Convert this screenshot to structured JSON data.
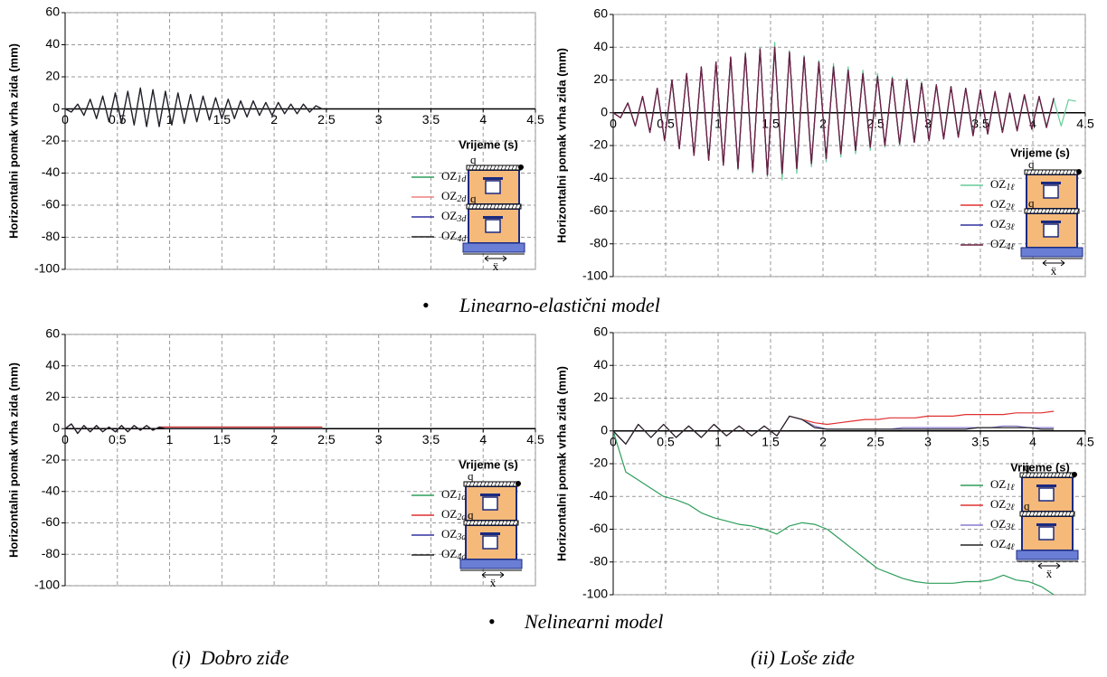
{
  "chart_data": [
    {
      "type": "line",
      "x_label": "Vrijeme (s)",
      "y_label": "Horizontalni pomak vrha zida (mm)",
      "xlim": [
        0,
        4.5
      ],
      "ylim": [
        -100,
        60
      ],
      "xticks": [
        0,
        0.5,
        1,
        1.5,
        2,
        2.5,
        3,
        3.5,
        4,
        4.5
      ],
      "yticks": [
        -100,
        -80,
        -60,
        -40,
        -20,
        0,
        20,
        40,
        60
      ],
      "grid": true,
      "icon_labels": [
        "q",
        "q",
        "ẍ"
      ],
      "x": [
        0,
        0.06,
        0.12,
        0.18,
        0.24,
        0.3,
        0.36,
        0.42,
        0.48,
        0.54,
        0.6,
        0.66,
        0.72,
        0.78,
        0.84,
        0.9,
        0.96,
        1.02,
        1.08,
        1.14,
        1.2,
        1.26,
        1.32,
        1.38,
        1.44,
        1.5,
        1.56,
        1.62,
        1.68,
        1.74,
        1.8,
        1.86,
        1.92,
        1.98,
        2.04,
        2.1,
        2.16,
        2.22,
        2.28,
        2.34,
        2.4,
        2.46
      ],
      "series": [
        {
          "name": "OZ1d",
          "color": "#2e9e5b",
          "values": [
            0,
            -2,
            3,
            -4,
            6,
            -6,
            8,
            -8,
            10,
            -9,
            11,
            -10,
            13,
            -11,
            12,
            -11,
            11,
            -10,
            10,
            -9,
            9,
            -8,
            8,
            -7,
            7,
            -6,
            6,
            -6,
            5,
            -5,
            5,
            -4,
            4,
            -4,
            4,
            -3,
            3,
            -3,
            3,
            -2,
            2,
            0
          ]
        },
        {
          "name": "OZ2d",
          "color": "#f08080",
          "values": [
            0,
            -2,
            3,
            -4,
            6,
            -6,
            8,
            -8,
            10,
            -9,
            11,
            -10,
            13,
            -11,
            12,
            -11,
            11,
            -10,
            10,
            -9,
            9,
            -8,
            8,
            -7,
            7,
            -6,
            6,
            -6,
            5,
            -5,
            5,
            -4,
            4,
            -4,
            4,
            -3,
            3,
            -3,
            3,
            -2,
            2,
            0
          ]
        },
        {
          "name": "OZ3d",
          "color": "#3030a0",
          "values": [
            0,
            -2,
            3,
            -4,
            6,
            -6,
            8,
            -8,
            10,
            -9,
            11,
            -10,
            13,
            -11,
            12,
            -11,
            11,
            -10,
            10,
            -9,
            9,
            -8,
            8,
            -7,
            7,
            -6,
            6,
            -6,
            5,
            -5,
            5,
            -4,
            4,
            -4,
            4,
            -3,
            3,
            -3,
            3,
            -2,
            2,
            0
          ]
        },
        {
          "name": "OZ4d",
          "color": "#222222",
          "values": [
            0,
            -2,
            3,
            -4,
            6,
            -6,
            8,
            -8,
            10,
            -9,
            11,
            -10,
            13,
            -11,
            12,
            -11,
            11,
            -10,
            10,
            -9,
            9,
            -8,
            8,
            -7,
            7,
            -6,
            6,
            -6,
            5,
            -5,
            5,
            -4,
            4,
            -4,
            4,
            -3,
            3,
            -3,
            3,
            -2,
            2,
            0
          ]
        }
      ]
    },
    {
      "type": "line",
      "x_label": "Vrijeme (s)",
      "y_label": "Horizontalni pomak vrha zida (mm)",
      "xlim": [
        0,
        4.5
      ],
      "ylim": [
        -100,
        60
      ],
      "xticks": [
        0,
        0.5,
        1,
        1.5,
        2,
        2.5,
        3,
        3.5,
        4,
        4.5
      ],
      "yticks": [
        -100,
        -80,
        -60,
        -40,
        -20,
        0,
        20,
        40,
        60
      ],
      "grid": true,
      "icon_labels": [
        "q",
        "q",
        "ẍ"
      ],
      "x": [
        0,
        0.07,
        0.14,
        0.21,
        0.28,
        0.35,
        0.42,
        0.49,
        0.56,
        0.63,
        0.7,
        0.77,
        0.84,
        0.91,
        0.98,
        1.05,
        1.12,
        1.19,
        1.26,
        1.33,
        1.4,
        1.47,
        1.54,
        1.61,
        1.68,
        1.75,
        1.82,
        1.89,
        1.96,
        2.03,
        2.1,
        2.17,
        2.24,
        2.31,
        2.38,
        2.45,
        2.52,
        2.59,
        2.66,
        2.73,
        2.8,
        2.87,
        2.94,
        3.01,
        3.08,
        3.15,
        3.22,
        3.29,
        3.36,
        3.43,
        3.5,
        3.57,
        3.64,
        3.71,
        3.78,
        3.85,
        3.92,
        3.99,
        4.06,
        4.13,
        4.2,
        4.27,
        4.34,
        4.41
      ],
      "series": [
        {
          "name": "OZ1ℓ",
          "color": "#66cc99",
          "values": [
            0,
            -3,
            6,
            -8,
            10,
            -12,
            14,
            -17,
            19,
            -22,
            24,
            -26,
            28,
            -29,
            30,
            -32,
            33,
            -35,
            37,
            -37,
            40,
            -39,
            43,
            -41,
            38,
            -37,
            35,
            -33,
            32,
            -30,
            30,
            -27,
            28,
            -25,
            26,
            -23,
            24,
            -21,
            22,
            -20,
            21,
            -18,
            19,
            -17,
            17,
            -15,
            16,
            -14,
            15,
            -12,
            13,
            -12,
            12,
            -11,
            11,
            -10,
            10,
            -9,
            9,
            -8,
            8,
            -8,
            8,
            7
          ]
        },
        {
          "name": "OZ2ℓ",
          "color": "#e03030",
          "values": [
            0,
            -3,
            6,
            -8,
            10,
            -12,
            15,
            -17,
            20,
            -22,
            24,
            -26,
            28,
            -29,
            31,
            -32,
            34,
            -34,
            36,
            -36,
            39,
            -38,
            40,
            -37,
            37,
            -34,
            34,
            -31,
            31,
            -28,
            28,
            -25,
            26,
            -23,
            24,
            -21,
            22,
            -20,
            21,
            -19,
            20,
            -18,
            18,
            -17,
            17,
            -16,
            16,
            -15,
            15,
            -14,
            14,
            -13,
            13,
            -12,
            12,
            -11,
            11,
            -10,
            10,
            -9,
            9,
            null,
            null,
            null
          ]
        },
        {
          "name": "OZ3ℓ",
          "color": "#3030a0",
          "values": [
            0,
            -3,
            6,
            -8,
            10,
            -12,
            15,
            -17,
            20,
            -22,
            24,
            -26,
            28,
            -29,
            31,
            -32,
            34,
            -34,
            36,
            -36,
            39,
            -38,
            40,
            -37,
            37,
            -34,
            34,
            -31,
            31,
            -28,
            28,
            -25,
            26,
            -23,
            24,
            -21,
            22,
            -20,
            21,
            -19,
            20,
            -18,
            18,
            -17,
            17,
            -16,
            16,
            -15,
            15,
            -14,
            14,
            -13,
            13,
            -12,
            12,
            -11,
            11,
            -10,
            10,
            -9,
            9,
            null,
            null,
            null
          ]
        },
        {
          "name": "OZ4ℓ",
          "color": "#6a2040",
          "values": [
            0,
            -3,
            6,
            -8,
            10,
            -12,
            15,
            -17,
            20,
            -22,
            24,
            -26,
            28,
            -29,
            31,
            -32,
            34,
            -34,
            36,
            -36,
            39,
            -38,
            40,
            -37,
            37,
            -34,
            34,
            -31,
            31,
            -28,
            28,
            -25,
            26,
            -23,
            24,
            -21,
            22,
            -20,
            21,
            -19,
            20,
            -18,
            18,
            -17,
            17,
            -16,
            16,
            -15,
            15,
            -14,
            14,
            -13,
            13,
            -12,
            12,
            -11,
            11,
            -10,
            10,
            -9,
            9,
            null,
            null,
            null
          ]
        }
      ]
    },
    {
      "type": "line",
      "x_label": "Vrijeme (s)",
      "y_label": "Horizontalni pomak vrha zida (mm)",
      "xlim": [
        0,
        4.5
      ],
      "ylim": [
        -100,
        60
      ],
      "xticks": [
        0,
        0.5,
        1,
        1.5,
        2,
        2.5,
        3,
        3.5,
        4,
        4.5
      ],
      "yticks": [
        -100,
        -80,
        -60,
        -40,
        -20,
        0,
        20,
        40,
        60
      ],
      "grid": true,
      "icon_labels": [
        "q",
        "q",
        "ẍ"
      ],
      "x": [
        0,
        0.06,
        0.12,
        0.18,
        0.24,
        0.3,
        0.36,
        0.42,
        0.48,
        0.54,
        0.6,
        0.66,
        0.72,
        0.78,
        0.84,
        0.9,
        0.96,
        1.02,
        1.08,
        1.14,
        1.2,
        1.26,
        1.32,
        1.38,
        1.44,
        1.5,
        1.56,
        1.62,
        1.68,
        1.74,
        1.8,
        1.86,
        1.92,
        1.98,
        2.04,
        2.1,
        2.16,
        2.22,
        2.28,
        2.34,
        2.4,
        2.46
      ],
      "series": [
        {
          "name": "OZ1d",
          "color": "#2e9e5b",
          "values": [
            0,
            3,
            -3,
            2,
            -2,
            2,
            -2,
            1,
            -2,
            2,
            -2,
            2,
            -1,
            2,
            -1,
            1,
            1,
            1,
            1,
            1,
            1,
            1,
            1,
            1,
            1,
            1,
            1,
            1,
            1,
            1,
            1,
            1,
            1,
            1,
            1,
            1,
            1,
            1,
            1,
            1,
            1,
            1
          ]
        },
        {
          "name": "OZ2d",
          "color": "#e03030",
          "values": [
            0,
            3,
            -3,
            2,
            -2,
            2,
            -2,
            1,
            -2,
            2,
            -2,
            2,
            -1,
            2,
            -1,
            1,
            1,
            1,
            1,
            1,
            1,
            1,
            1,
            1,
            1,
            1,
            1,
            1,
            1,
            1,
            1,
            1,
            1,
            1,
            1,
            1,
            1,
            1,
            1,
            1,
            1,
            1
          ]
        },
        {
          "name": "OZ3d",
          "color": "#3030a0",
          "values": [
            0,
            3,
            -3,
            2,
            -2,
            2,
            -2,
            1,
            -2,
            2,
            -2,
            2,
            -1,
            2,
            -1,
            1,
            0,
            0,
            0,
            0,
            0,
            0,
            0,
            0,
            0,
            0,
            0,
            0,
            0,
            0,
            0,
            0,
            0,
            0,
            0,
            0,
            0,
            0,
            0,
            0,
            0,
            0
          ]
        },
        {
          "name": "OZ4d",
          "color": "#222222",
          "values": [
            0,
            3,
            -3,
            2,
            -2,
            2,
            -2,
            1,
            -2,
            2,
            -2,
            2,
            -1,
            2,
            -1,
            1,
            0,
            0,
            0,
            0,
            0,
            0,
            0,
            0,
            0,
            0,
            0,
            0,
            0,
            0,
            0,
            0,
            0,
            0,
            0,
            0,
            0,
            0,
            0,
            0,
            0,
            0
          ]
        }
      ]
    },
    {
      "type": "line",
      "x_label": "Vrijeme (s)",
      "y_label": "Horizontalni pomak vrha zida (mm)",
      "xlim": [
        0,
        4.5
      ],
      "ylim": [
        -100,
        60
      ],
      "xticks": [
        0,
        0.5,
        1,
        1.5,
        2,
        2.5,
        3,
        3.5,
        4,
        4.5
      ],
      "yticks": [
        -100,
        -80,
        -60,
        -40,
        -20,
        0,
        20,
        40,
        60
      ],
      "grid": true,
      "icon_labels": [
        "q",
        "q",
        "ẍ"
      ],
      "x": [
        0,
        0.12,
        0.24,
        0.36,
        0.48,
        0.6,
        0.72,
        0.84,
        0.96,
        1.08,
        1.2,
        1.32,
        1.44,
        1.56,
        1.68,
        1.8,
        1.92,
        2.04,
        2.16,
        2.28,
        2.4,
        2.52,
        2.64,
        2.76,
        2.88,
        3.0,
        3.12,
        3.24,
        3.36,
        3.48,
        3.6,
        3.72,
        3.84,
        3.96,
        4.08,
        4.2
      ],
      "series": [
        {
          "name": "OZ1ℓ",
          "color": "#2e9e5b",
          "values": [
            0,
            -25,
            -30,
            -35,
            -40,
            -42,
            -45,
            -50,
            -53,
            -55,
            -57,
            -58,
            -60,
            -63,
            -58,
            -56,
            -57,
            -60,
            -66,
            -72,
            -78,
            -84,
            -87,
            -90,
            -92,
            -93,
            -93,
            -93,
            -92,
            -92,
            -91,
            -88,
            -91,
            -92,
            -95,
            -100
          ]
        },
        {
          "name": "OZ2ℓ",
          "color": "#e03030",
          "values": [
            0,
            -8,
            4,
            -4,
            4,
            -4,
            3,
            -4,
            4,
            -3,
            3,
            -3,
            3,
            -3,
            9,
            7,
            5,
            4,
            5,
            6,
            7,
            7,
            8,
            8,
            8,
            9,
            9,
            9,
            10,
            10,
            10,
            10,
            11,
            11,
            11,
            12
          ]
        },
        {
          "name": "OZ3ℓ",
          "color": "#8a7ad0",
          "values": [
            0,
            -8,
            4,
            -4,
            4,
            -4,
            3,
            -4,
            4,
            -3,
            3,
            -3,
            3,
            -3,
            9,
            7,
            3,
            1,
            1,
            1,
            1,
            1,
            1,
            2,
            2,
            2,
            2,
            2,
            2,
            2,
            2,
            3,
            3,
            2,
            2,
            2
          ]
        },
        {
          "name": "OZ4ℓ",
          "color": "#222222",
          "values": [
            0,
            -8,
            4,
            -4,
            4,
            -4,
            3,
            -4,
            4,
            -3,
            3,
            -3,
            3,
            -3,
            9,
            7,
            2,
            1,
            1,
            1,
            1,
            1,
            1,
            1,
            1,
            1,
            1,
            1,
            1,
            2,
            2,
            2,
            2,
            2,
            1,
            1
          ]
        }
      ]
    }
  ],
  "row_captions": [
    "Linearno-elastični model",
    "Nelinearni model"
  ],
  "column_captions": [
    "(i)  Dobro ziđe",
    "(ii) Loše ziđe"
  ]
}
